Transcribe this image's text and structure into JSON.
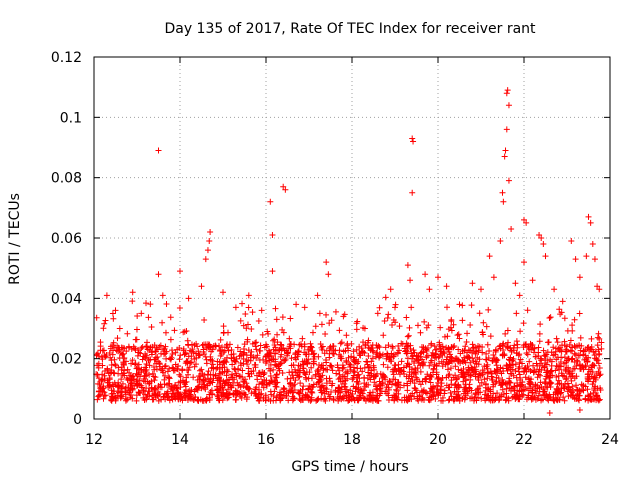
{
  "chart_data": {
    "type": "scatter",
    "title": "Day 135 of 2017, Rate Of TEC Index for receiver rant",
    "xlabel": "GPS time / hours",
    "ylabel": "ROTI / TECUs",
    "xlim": [
      12,
      24
    ],
    "ylim": [
      0,
      0.12
    ],
    "x_ticks": [
      12,
      14,
      16,
      18,
      20,
      22,
      24
    ],
    "y_ticks": [
      0,
      0.02,
      0.04,
      0.06,
      0.08,
      0.1,
      0.12
    ],
    "x_tick_labels": [
      "12",
      "14",
      "16",
      "18",
      "20",
      "22",
      "24"
    ],
    "y_tick_labels": [
      "0",
      "0.02",
      "0.04",
      "0.06",
      "0.08",
      "0.1",
      "0.12"
    ],
    "grid": true,
    "marker": "+",
    "series": [
      {
        "name": "ROTI",
        "color": "#ff0000",
        "data_range": [
          12.05,
          23.8
        ],
        "baseline_band": [
          0.006,
          0.025
        ],
        "points": [
          [
            12.3,
            0.041
          ],
          [
            12.5,
            0.036
          ],
          [
            12.6,
            0.03
          ],
          [
            12.9,
            0.042
          ],
          [
            13.1,
            0.035
          ],
          [
            13.5,
            0.089
          ],
          [
            13.5,
            0.048
          ],
          [
            13.6,
            0.041
          ],
          [
            14.0,
            0.049
          ],
          [
            14.2,
            0.04
          ],
          [
            14.5,
            0.044
          ],
          [
            14.6,
            0.053
          ],
          [
            14.65,
            0.056
          ],
          [
            14.68,
            0.059
          ],
          [
            14.7,
            0.062
          ],
          [
            15.0,
            0.042
          ],
          [
            15.3,
            0.037
          ],
          [
            15.6,
            0.041
          ],
          [
            15.9,
            0.036
          ],
          [
            16.1,
            0.072
          ],
          [
            16.15,
            0.061
          ],
          [
            16.15,
            0.049
          ],
          [
            16.4,
            0.077
          ],
          [
            16.45,
            0.076
          ],
          [
            16.7,
            0.038
          ],
          [
            16.9,
            0.037
          ],
          [
            17.2,
            0.041
          ],
          [
            17.4,
            0.052
          ],
          [
            17.45,
            0.048
          ],
          [
            17.8,
            0.034
          ],
          [
            18.3,
            0.03
          ],
          [
            18.6,
            0.035
          ],
          [
            18.9,
            0.043
          ],
          [
            19.0,
            0.037
          ],
          [
            19.3,
            0.051
          ],
          [
            19.35,
            0.046
          ],
          [
            19.4,
            0.093
          ],
          [
            19.42,
            0.092
          ],
          [
            19.4,
            0.075
          ],
          [
            19.7,
            0.048
          ],
          [
            19.8,
            0.043
          ],
          [
            20.0,
            0.047
          ],
          [
            20.2,
            0.044
          ],
          [
            20.5,
            0.038
          ],
          [
            20.8,
            0.045
          ],
          [
            21.0,
            0.043
          ],
          [
            21.2,
            0.054
          ],
          [
            21.3,
            0.047
          ],
          [
            21.45,
            0.059
          ],
          [
            21.5,
            0.075
          ],
          [
            21.52,
            0.072
          ],
          [
            21.55,
            0.087
          ],
          [
            21.57,
            0.089
          ],
          [
            21.6,
            0.096
          ],
          [
            21.6,
            0.108
          ],
          [
            21.62,
            0.109
          ],
          [
            21.65,
            0.104
          ],
          [
            21.65,
            0.079
          ],
          [
            21.7,
            0.063
          ],
          [
            21.8,
            0.045
          ],
          [
            21.9,
            0.041
          ],
          [
            22.0,
            0.066
          ],
          [
            22.05,
            0.065
          ],
          [
            22.0,
            0.052
          ],
          [
            22.2,
            0.046
          ],
          [
            22.35,
            0.061
          ],
          [
            22.4,
            0.06
          ],
          [
            22.45,
            0.058
          ],
          [
            22.5,
            0.054
          ],
          [
            22.7,
            0.043
          ],
          [
            22.9,
            0.039
          ],
          [
            23.1,
            0.059
          ],
          [
            23.2,
            0.053
          ],
          [
            23.3,
            0.047
          ],
          [
            23.45,
            0.054
          ],
          [
            23.5,
            0.067
          ],
          [
            23.55,
            0.065
          ],
          [
            23.6,
            0.058
          ],
          [
            23.65,
            0.053
          ],
          [
            23.7,
            0.044
          ],
          [
            23.75,
            0.043
          ],
          [
            22.6,
            0.002
          ],
          [
            23.3,
            0.003
          ]
        ]
      }
    ]
  }
}
